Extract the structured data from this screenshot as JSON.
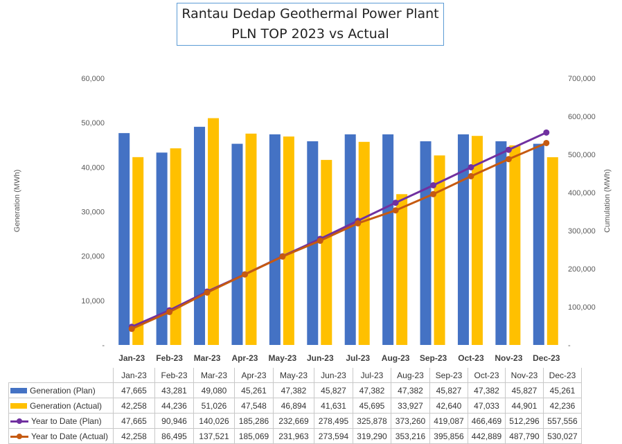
{
  "chart_data": {
    "type": "bar",
    "title": [
      "Rantau Dedap Geothermal Power Plant",
      "PLN TOP 2023 vs Actual"
    ],
    "ylabel": "Generation (MWh)",
    "y2label": "Cumulation (MWh)",
    "ylim": [
      0,
      60000
    ],
    "y2lim": [
      0,
      700000
    ],
    "yticks": [
      "-",
      "10,000",
      "20,000",
      "30,000",
      "40,000",
      "50,000",
      "60,000"
    ],
    "y2ticks": [
      "-",
      "100,000",
      "200,000",
      "300,000",
      "400,000",
      "500,000",
      "600,000",
      "700,000"
    ],
    "categories": [
      "Jan-23",
      "Feb-23",
      "Mar-23",
      "Apr-23",
      "May-23",
      "Jun-23",
      "Jul-23",
      "Aug-23",
      "Sep-23",
      "Oct-23",
      "Nov-23",
      "Dec-23"
    ],
    "series": [
      {
        "name": "Generation (Plan)",
        "kind": "bar",
        "color": "#4472c4",
        "values": [
          47665,
          43281,
          49080,
          45261,
          47382,
          45827,
          47382,
          47382,
          45827,
          47382,
          45827,
          45261
        ],
        "labels": [
          "47,665",
          "43,281",
          "49,080",
          "45,261",
          "47,382",
          "45,827",
          "47,382",
          "47,382",
          "45,827",
          "47,382",
          "45,827",
          "45,261"
        ]
      },
      {
        "name": "Generation (Actual)",
        "kind": "bar",
        "color": "#ffc000",
        "values": [
          42258,
          44236,
          51026,
          47548,
          46894,
          41631,
          45695,
          33927,
          42640,
          47033,
          44901,
          42236
        ],
        "labels": [
          "42,258",
          "44,236",
          "51,026",
          "47,548",
          "46,894",
          "41,631",
          "45,695",
          "33,927",
          "42,640",
          "47,033",
          "44,901",
          "42,236"
        ]
      },
      {
        "name": "Year to Date (Plan)",
        "kind": "line",
        "axis": "y2",
        "color": "#7030a0",
        "values": [
          47665,
          90946,
          140026,
          185286,
          232669,
          278495,
          325878,
          373260,
          419087,
          466469,
          512296,
          557556
        ],
        "labels": [
          "47,665",
          "90,946",
          "140,026",
          "185,286",
          "232,669",
          "278,495",
          "325,878",
          "373,260",
          "419,087",
          "466,469",
          "512,296",
          "557,556"
        ]
      },
      {
        "name": "Year to Date (Actual)",
        "kind": "line",
        "axis": "y2",
        "color": "#c55a11",
        "values": [
          42258,
          86495,
          137521,
          185069,
          231963,
          273594,
          319290,
          353216,
          395856,
          442889,
          487790,
          530027
        ],
        "labels": [
          "42,258",
          "86,495",
          "137,521",
          "185,069",
          "231,963",
          "273,594",
          "319,290",
          "353,216",
          "395,856",
          "442,889",
          "487,790",
          "530,027"
        ]
      }
    ]
  }
}
